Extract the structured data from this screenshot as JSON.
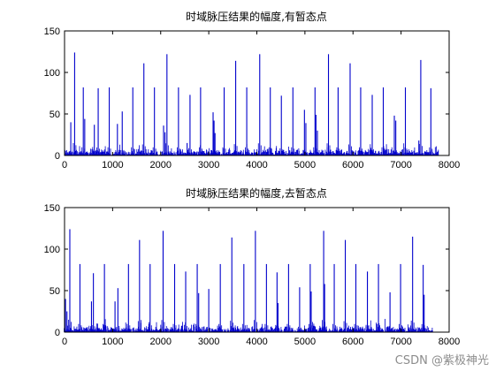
{
  "colors": {
    "line": "#0000cc",
    "axis": "#000000",
    "background": "#ffffff"
  },
  "watermark": "CSDN @紫极神光",
  "chart_data": [
    {
      "type": "line",
      "title": "时域脉压结果的幅度,有暂态点",
      "xlabel": "",
      "ylabel": "",
      "xlim": [
        0,
        8000
      ],
      "ylim": [
        0,
        150
      ],
      "xticks": [
        0,
        1000,
        2000,
        3000,
        4000,
        5000,
        6000,
        7000,
        8000
      ],
      "yticks": [
        0,
        50,
        100,
        150
      ],
      "grid": false,
      "data_end_x": 7780,
      "noise_level": 6,
      "peaks": [
        {
          "x": 130,
          "y": 40
        },
        {
          "x": 210,
          "y": 124
        },
        {
          "x": 390,
          "y": 82
        },
        {
          "x": 420,
          "y": 44
        },
        {
          "x": 620,
          "y": 37
        },
        {
          "x": 700,
          "y": 81
        },
        {
          "x": 930,
          "y": 82
        },
        {
          "x": 1100,
          "y": 38
        },
        {
          "x": 1200,
          "y": 53
        },
        {
          "x": 1420,
          "y": 82
        },
        {
          "x": 1650,
          "y": 111
        },
        {
          "x": 1870,
          "y": 82
        },
        {
          "x": 2060,
          "y": 36
        },
        {
          "x": 2090,
          "y": 28
        },
        {
          "x": 2130,
          "y": 122
        },
        {
          "x": 2370,
          "y": 82
        },
        {
          "x": 2550,
          "y": 15
        },
        {
          "x": 2610,
          "y": 73
        },
        {
          "x": 2830,
          "y": 82
        },
        {
          "x": 3090,
          "y": 52
        },
        {
          "x": 3110,
          "y": 42
        },
        {
          "x": 3130,
          "y": 27
        },
        {
          "x": 3320,
          "y": 82
        },
        {
          "x": 3560,
          "y": 114
        },
        {
          "x": 3790,
          "y": 82
        },
        {
          "x": 4060,
          "y": 122
        },
        {
          "x": 4280,
          "y": 82
        },
        {
          "x": 4510,
          "y": 72
        },
        {
          "x": 4750,
          "y": 82
        },
        {
          "x": 4990,
          "y": 55
        },
        {
          "x": 5020,
          "y": 39
        },
        {
          "x": 5210,
          "y": 82
        },
        {
          "x": 5230,
          "y": 49
        },
        {
          "x": 5260,
          "y": 30
        },
        {
          "x": 5490,
          "y": 122
        },
        {
          "x": 5690,
          "y": 82
        },
        {
          "x": 5940,
          "y": 111
        },
        {
          "x": 6160,
          "y": 82
        },
        {
          "x": 6400,
          "y": 73
        },
        {
          "x": 6630,
          "y": 82
        },
        {
          "x": 6860,
          "y": 48
        },
        {
          "x": 6890,
          "y": 42
        },
        {
          "x": 7090,
          "y": 82
        },
        {
          "x": 7370,
          "y": 18
        },
        {
          "x": 7410,
          "y": 115
        },
        {
          "x": 7620,
          "y": 81
        }
      ]
    },
    {
      "type": "line",
      "title": "时域脉压结果的幅度,去暂态点",
      "xlabel": "",
      "ylabel": "",
      "xlim": [
        0,
        8000
      ],
      "ylim": [
        0,
        150
      ],
      "xticks": [
        0,
        1000,
        2000,
        3000,
        4000,
        5000,
        6000,
        7000,
        8000
      ],
      "yticks": [
        0,
        50,
        100,
        150
      ],
      "grid": false,
      "data_end_x": 7660,
      "noise_level": 6,
      "peaks": [
        {
          "x": 20,
          "y": 40
        },
        {
          "x": 50,
          "y": 25
        },
        {
          "x": 110,
          "y": 124
        },
        {
          "x": 320,
          "y": 82
        },
        {
          "x": 560,
          "y": 37
        },
        {
          "x": 600,
          "y": 71
        },
        {
          "x": 830,
          "y": 82
        },
        {
          "x": 1050,
          "y": 37
        },
        {
          "x": 1110,
          "y": 53
        },
        {
          "x": 1330,
          "y": 82
        },
        {
          "x": 1560,
          "y": 111
        },
        {
          "x": 1780,
          "y": 82
        },
        {
          "x": 2050,
          "y": 122
        },
        {
          "x": 2290,
          "y": 82
        },
        {
          "x": 2520,
          "y": 73
        },
        {
          "x": 2760,
          "y": 82
        },
        {
          "x": 2790,
          "y": 47
        },
        {
          "x": 3000,
          "y": 52
        },
        {
          "x": 3240,
          "y": 82
        },
        {
          "x": 3480,
          "y": 114
        },
        {
          "x": 3730,
          "y": 82
        },
        {
          "x": 3970,
          "y": 122
        },
        {
          "x": 4200,
          "y": 82
        },
        {
          "x": 4420,
          "y": 72
        },
        {
          "x": 4440,
          "y": 35
        },
        {
          "x": 4660,
          "y": 82
        },
        {
          "x": 4890,
          "y": 54
        },
        {
          "x": 5110,
          "y": 82
        },
        {
          "x": 5130,
          "y": 49
        },
        {
          "x": 5390,
          "y": 122
        },
        {
          "x": 5410,
          "y": 58
        },
        {
          "x": 5610,
          "y": 82
        },
        {
          "x": 5840,
          "y": 111
        },
        {
          "x": 6060,
          "y": 82
        },
        {
          "x": 6300,
          "y": 73
        },
        {
          "x": 6530,
          "y": 82
        },
        {
          "x": 6770,
          "y": 48
        },
        {
          "x": 6990,
          "y": 82
        },
        {
          "x": 7240,
          "y": 115
        },
        {
          "x": 7460,
          "y": 81
        },
        {
          "x": 7480,
          "y": 45
        }
      ]
    }
  ]
}
